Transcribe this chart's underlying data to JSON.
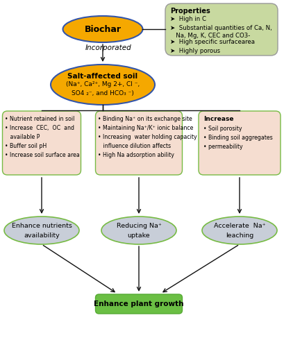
{
  "biochar_label": "Biochar",
  "biochar_color": "#F5A800",
  "biochar_edge": "#3355AA",
  "incorporated_label": "Incorporated",
  "salt_soil_line1": "Salt-affected soil",
  "salt_soil_line2": "(Na⁺, Ca²⁺, Mg 2+, Cl ⁻,",
  "salt_soil_line3": "SO4 ₂⁻, and HCO₃ ⁻)",
  "salt_soil_color": "#F5A800",
  "salt_soil_edge": "#3355AA",
  "properties_title": "Properties",
  "prop_lines": [
    "High in C",
    "Substantial quantities of Ca, N,\n   Na, Mg, K, CEC and CO3-",
    "High specific surfacearea",
    "Highly porous"
  ],
  "properties_bg": "#C8D9A0",
  "properties_edge": "#999999",
  "box1_lines": [
    "• Nutrient retained in soil",
    "• Increase  CEC,  OC  and\n   available P",
    "• Buffer soil pH",
    "• Increase soil surface area"
  ],
  "box2_lines": [
    "• Binding Na⁺ on its exchange site",
    "• Maintaining Na⁺/K⁺ ionic balance",
    "• Increasing  water holding capacity\n   influence dilution affects",
    "• High Na adsorption ability"
  ],
  "box3_title": "Increase",
  "box3_lines": [
    "• Soil porosity",
    "• Binding soil aggregates",
    "• permeability"
  ],
  "boxes_bg": "#F5DDD0",
  "boxes_edge": "#77BB44",
  "ellipse1_label1": "Enhance nutrients",
  "ellipse1_label2": "availability",
  "ellipse2_label1": "Reducing Na⁺",
  "ellipse2_label2": "uptake",
  "ellipse3_label1": "Accelerate  Na⁺",
  "ellipse3_label2": "leaching",
  "ellipses_bg": "#C8CED8",
  "ellipses_edge": "#77BB44",
  "final_label": "Enhance plant growth",
  "final_bg": "#6BBF44",
  "final_edge": "#55AA33",
  "arrow_color": "#111111",
  "bg_color": "#ffffff"
}
